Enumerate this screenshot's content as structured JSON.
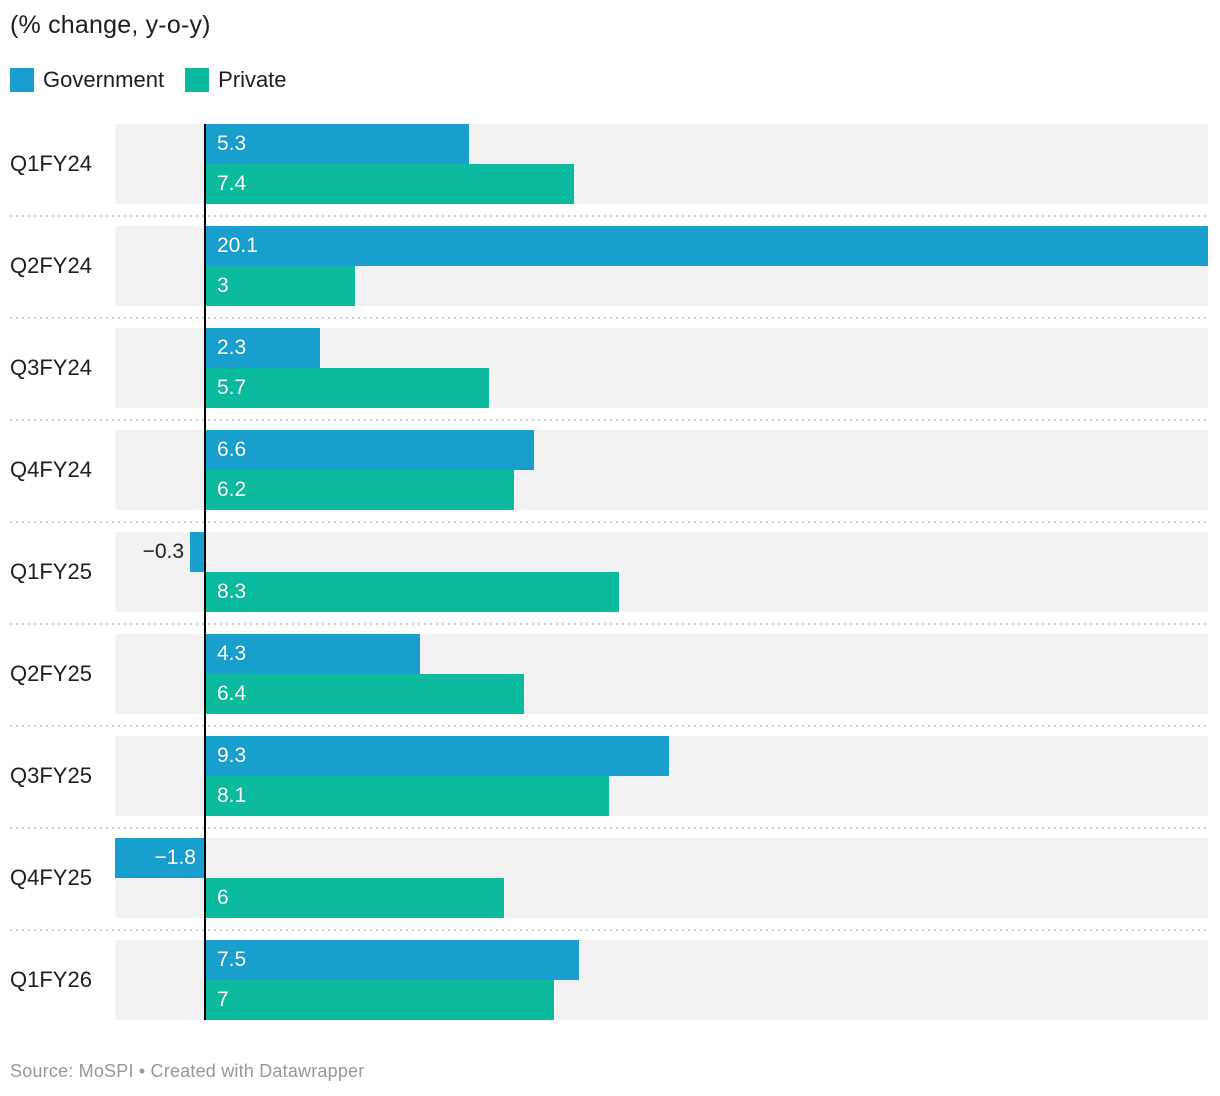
{
  "header": {
    "title": "(% change, y-o-y)"
  },
  "legend": {
    "items": [
      {
        "label": "Government",
        "color": "#189fcd"
      },
      {
        "label": "Private",
        "color": "#0cbb9d"
      }
    ]
  },
  "chart_data": {
    "type": "bar",
    "orientation": "horizontal",
    "title": "(% change, y-o-y)",
    "categories": [
      "Q1FY24",
      "Q2FY24",
      "Q3FY24",
      "Q4FY24",
      "Q1FY25",
      "Q2FY25",
      "Q3FY25",
      "Q4FY25",
      "Q1FY26"
    ],
    "series": [
      {
        "name": "Government",
        "color": "#189fcd",
        "values": [
          5.3,
          20.1,
          2.3,
          6.6,
          -0.3,
          4.3,
          9.3,
          -1.8,
          7.5
        ]
      },
      {
        "name": "Private",
        "color": "#0cbb9d",
        "values": [
          7.4,
          3,
          5.7,
          6.2,
          8.3,
          6.4,
          8.1,
          6,
          7
        ]
      }
    ],
    "xlim": [
      -1.8,
      20.1
    ],
    "grid": false,
    "legend_position": "top",
    "xlabel": "",
    "ylabel": ""
  },
  "footer": {
    "source_text": "Source: MoSPI • Created with Datawrapper"
  }
}
